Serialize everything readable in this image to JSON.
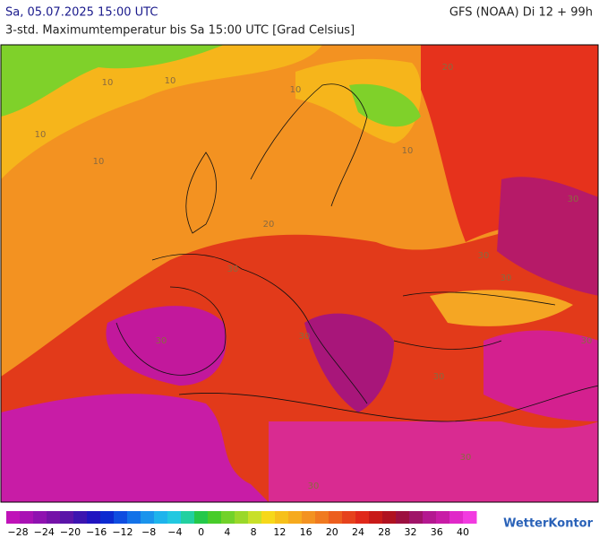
{
  "header": {
    "datetime": "Sa, 05.07.2025 15:00 UTC",
    "model": "GFS (NOAA) Di 12 + 99h",
    "subtitle": "3-std. Maximumtemperatur bis Sa 15:00 UTC [Grad Celsius]"
  },
  "map": {
    "contour_labels": [
      "10",
      "10",
      "10",
      "10",
      "10",
      "10",
      "20",
      "20",
      "30",
      "30",
      "30",
      "30",
      "30",
      "30",
      "30",
      "30",
      "30",
      "30"
    ]
  },
  "legend": {
    "labels": [
      "−28",
      "−24",
      "−20",
      "−16",
      "−12",
      "−8",
      "−4",
      "0",
      "4",
      "8",
      "12",
      "16",
      "20",
      "24",
      "28",
      "32",
      "36",
      "40"
    ]
  },
  "brand": "WetterKontor"
}
